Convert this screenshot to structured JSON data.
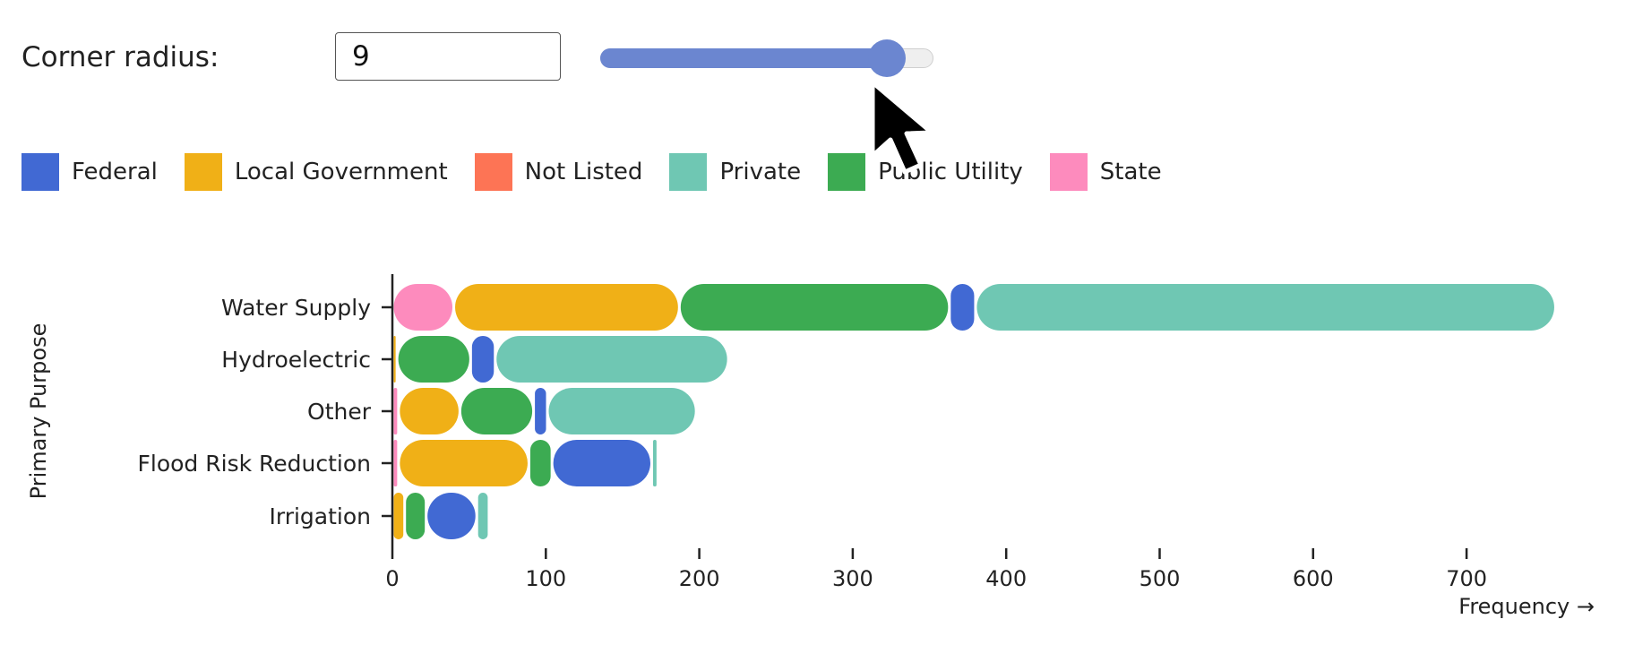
{
  "controls": {
    "corner_radius_label": "Corner radius:",
    "corner_radius_value": "9",
    "slider_fraction": 0.86
  },
  "colors": {
    "Federal": "#4169d3",
    "Local Government": "#f0b017",
    "Not Listed": "#fd7455",
    "Private": "#6fc7b3",
    "Public Utility": "#3cab52",
    "State": "#fd8bbd",
    "slider_accent": "#6b86d0"
  },
  "legend": [
    {
      "label": "Federal",
      "color": "#4169d3"
    },
    {
      "label": "Local Government",
      "color": "#f0b017"
    },
    {
      "label": "Not Listed",
      "color": "#fd7455"
    },
    {
      "label": "Private",
      "color": "#6fc7b3"
    },
    {
      "label": "Public Utility",
      "color": "#3cab52"
    },
    {
      "label": "State",
      "color": "#fd8bbd"
    }
  ],
  "chart_data": {
    "type": "bar",
    "orientation": "horizontal",
    "stacked": true,
    "xlabel": "Frequency →",
    "ylabel": "Primary Purpose",
    "xlim": [
      0,
      760
    ],
    "xticks": [
      0,
      100,
      200,
      300,
      400,
      500,
      600,
      700
    ],
    "categories": [
      "Water Supply",
      "Hydroelectric",
      "Other",
      "Flood Risk Reduction",
      "Irrigation"
    ],
    "bars": [
      {
        "category": "Water Supply",
        "segments": [
          {
            "series": "State",
            "value": 40
          },
          {
            "series": "Local Government",
            "value": 147
          },
          {
            "series": "Public Utility",
            "value": 176
          },
          {
            "series": "Federal",
            "value": 17
          },
          {
            "series": "Private",
            "value": 378
          }
        ]
      },
      {
        "category": "Hydroelectric",
        "segments": [
          {
            "series": "Local Government",
            "value": 3
          },
          {
            "series": "Public Utility",
            "value": 48
          },
          {
            "series": "Federal",
            "value": 16
          },
          {
            "series": "Private",
            "value": 152
          }
        ]
      },
      {
        "category": "Other",
        "segments": [
          {
            "series": "State",
            "value": 4
          },
          {
            "series": "Local Government",
            "value": 40
          },
          {
            "series": "Public Utility",
            "value": 48
          },
          {
            "series": "Federal",
            "value": 9
          },
          {
            "series": "Private",
            "value": 97
          }
        ]
      },
      {
        "category": "Flood Risk Reduction",
        "segments": [
          {
            "series": "State",
            "value": 4
          },
          {
            "series": "Local Government",
            "value": 85
          },
          {
            "series": "Public Utility",
            "value": 15
          },
          {
            "series": "Federal",
            "value": 65
          },
          {
            "series": "Private",
            "value": 4
          }
        ]
      },
      {
        "category": "Irrigation",
        "segments": [
          {
            "series": "Local Government",
            "value": 8
          },
          {
            "series": "Public Utility",
            "value": 14
          },
          {
            "series": "Federal",
            "value": 33
          },
          {
            "series": "Private",
            "value": 8
          }
        ]
      }
    ]
  }
}
